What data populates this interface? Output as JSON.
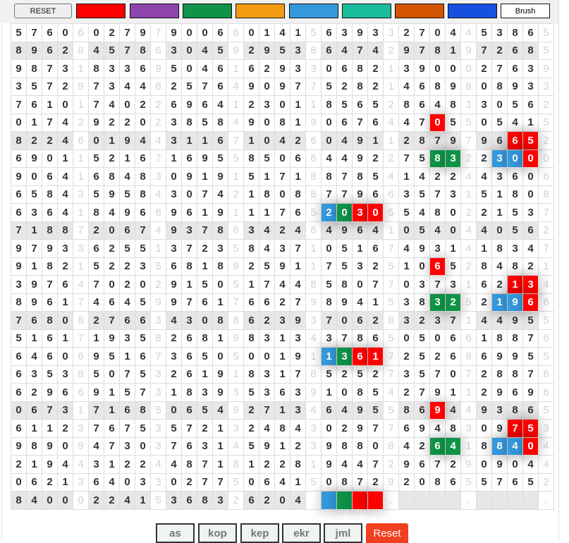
{
  "toolbar": {
    "reset_label": "RESET",
    "brush_label": "Brush",
    "swatches": [
      "#ff0000",
      "#8e44ad",
      "#0e9347",
      "#f39c12",
      "#3498db",
      "#1abc9c",
      "#d35400",
      "#1650e0"
    ]
  },
  "grid": {
    "shaded_rows": [
      1,
      6,
      11,
      16,
      21,
      26
    ],
    "rows": [
      "57606027979006601415639332704453865",
      "89628457863045929538647429781972685",
      "98731833695046162933068213900027639",
      "35729734482576490977528214689808933",
      "76101740226964123011856528648330562",
      "01742922023858490819067644705505415",
      "82246019443116710426049112879796652",
      "69011521671695585066449227583223000",
      "90641684830919151718878541422443606",
      "65843595843074218088779663573151808",
      "63641849669619111765203055480221537",
      "71887206749378634246496410540440562",
      "97933625513723584371051674931418347",
      "91821522356818925911753251065284821",
      "39764702029150517448580770373162134",
      "89617464599761766279894153832521966",
      "76808276634308862393706283237144955",
      "51617193582681983134378650506618876",
      "64606951673650500191136172526869955",
      "63538507532619183178525273570728876",
      "62966915731839353639108542791129696",
      "06731716850654927134649558694493865",
      "61123767535721324843029776948309753",
      "98909473037631459123988084264188404",
      "21944312244871812281944729672909044",
      "06213640330277506415087292086557652",
      "8400022415368326204     .    .    ."
    ],
    "highlights": [
      {
        "row": 5,
        "col": 27,
        "color": "#ff0000"
      },
      {
        "row": 6,
        "col": 32,
        "color": "#ff0000"
      },
      {
        "row": 6,
        "col": 33,
        "color": "#ff0000"
      },
      {
        "row": 7,
        "col": 27,
        "color": "#0e9347"
      },
      {
        "row": 7,
        "col": 28,
        "color": "#0e9347"
      },
      {
        "row": 7,
        "col": 31,
        "color": "#3498db"
      },
      {
        "row": 7,
        "col": 32,
        "color": "#3498db"
      },
      {
        "row": 7,
        "col": 33,
        "color": "#ff0000"
      },
      {
        "row": 10,
        "col": 20,
        "color": "#3498db"
      },
      {
        "row": 10,
        "col": 21,
        "color": "#0e9347"
      },
      {
        "row": 10,
        "col": 22,
        "color": "#ff0000"
      },
      {
        "row": 10,
        "col": 23,
        "color": "#ff0000"
      },
      {
        "row": 13,
        "col": 27,
        "color": "#ff0000"
      },
      {
        "row": 14,
        "col": 32,
        "color": "#ff0000"
      },
      {
        "row": 14,
        "col": 33,
        "color": "#ff0000"
      },
      {
        "row": 15,
        "col": 27,
        "color": "#0e9347"
      },
      {
        "row": 15,
        "col": 28,
        "color": "#0e9347"
      },
      {
        "row": 15,
        "col": 31,
        "color": "#3498db"
      },
      {
        "row": 15,
        "col": 32,
        "color": "#3498db"
      },
      {
        "row": 15,
        "col": 33,
        "color": "#ff0000"
      },
      {
        "row": 18,
        "col": 20,
        "color": "#3498db"
      },
      {
        "row": 18,
        "col": 21,
        "color": "#0e9347"
      },
      {
        "row": 18,
        "col": 22,
        "color": "#ff0000"
      },
      {
        "row": 18,
        "col": 23,
        "color": "#ff0000"
      },
      {
        "row": 21,
        "col": 27,
        "color": "#ff0000"
      },
      {
        "row": 22,
        "col": 32,
        "color": "#ff0000"
      },
      {
        "row": 22,
        "col": 33,
        "color": "#ff0000"
      },
      {
        "row": 23,
        "col": 27,
        "color": "#0e9347"
      },
      {
        "row": 23,
        "col": 28,
        "color": "#0e9347"
      },
      {
        "row": 23,
        "col": 31,
        "color": "#3498db"
      },
      {
        "row": 23,
        "col": 32,
        "color": "#3498db"
      },
      {
        "row": 23,
        "col": 33,
        "color": "#ff0000"
      },
      {
        "row": 26,
        "col": 20,
        "color": "#3498db"
      },
      {
        "row": 26,
        "col": 21,
        "color": "#0e9347"
      },
      {
        "row": 26,
        "col": 22,
        "color": "#ff0000"
      },
      {
        "row": 26,
        "col": 23,
        "color": "#ff0000"
      }
    ]
  },
  "bottom": {
    "buttons": [
      "as",
      "kop",
      "kep",
      "ekr",
      "jml"
    ],
    "reset_label": "Reset",
    "reset_color": "#f0401f"
  }
}
